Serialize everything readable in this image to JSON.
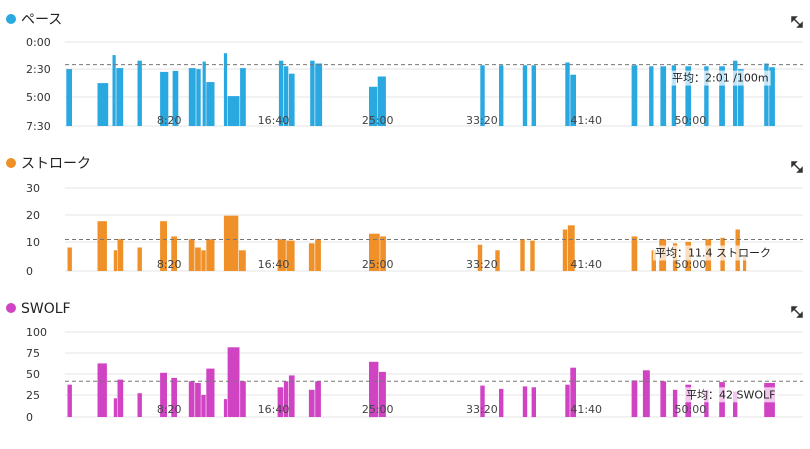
{
  "chart_data": [
    {
      "type": "bar",
      "title": "ペース",
      "color": "#2aa8e0",
      "y_ticks": [
        "0:00",
        "2:30",
        "5:00",
        "7:30"
      ],
      "ylim_seconds": [
        0,
        450
      ],
      "inverted": true,
      "x_ticks": [
        "8:20",
        "16:40",
        "25:00",
        "33:20",
        "41:40",
        "50:00"
      ],
      "x_tick_minutes": [
        8.333,
        16.667,
        25,
        33.333,
        41.667,
        50
      ],
      "xlim_minutes": [
        0,
        59
      ],
      "average_seconds": 121,
      "average_label": "平均：2:01 /100m",
      "bars": [
        {
          "start": 0.1,
          "end": 0.6,
          "value": 145
        },
        {
          "start": 2.6,
          "end": 3.5,
          "value": 220
        },
        {
          "start": 3.8,
          "end": 4.1,
          "value": 70
        },
        {
          "start": 4.1,
          "end": 4.7,
          "value": 140
        },
        {
          "start": 5.8,
          "end": 6.2,
          "value": 100
        },
        {
          "start": 7.6,
          "end": 8.3,
          "value": 160
        },
        {
          "start": 8.6,
          "end": 9.1,
          "value": 155
        },
        {
          "start": 9.9,
          "end": 10.5,
          "value": 140
        },
        {
          "start": 10.5,
          "end": 10.9,
          "value": 145
        },
        {
          "start": 11.0,
          "end": 11.3,
          "value": 105
        },
        {
          "start": 11.3,
          "end": 12.0,
          "value": 215
        },
        {
          "start": 12.7,
          "end": 13.0,
          "value": 60
        },
        {
          "start": 13.0,
          "end": 14.0,
          "value": 290
        },
        {
          "start": 14.0,
          "end": 14.5,
          "value": 140
        },
        {
          "start": 17.1,
          "end": 17.5,
          "value": 100
        },
        {
          "start": 17.5,
          "end": 17.9,
          "value": 130
        },
        {
          "start": 17.9,
          "end": 18.4,
          "value": 170
        },
        {
          "start": 19.6,
          "end": 20.0,
          "value": 100
        },
        {
          "start": 20.0,
          "end": 20.6,
          "value": 115
        },
        {
          "start": 24.3,
          "end": 25.0,
          "value": 240
        },
        {
          "start": 25.0,
          "end": 25.7,
          "value": 185
        },
        {
          "start": 33.2,
          "end": 33.6,
          "value": 125
        },
        {
          "start": 34.7,
          "end": 35.1,
          "value": 125
        },
        {
          "start": 36.6,
          "end": 37.0,
          "value": 125
        },
        {
          "start": 37.3,
          "end": 37.7,
          "value": 125
        },
        {
          "start": 40.0,
          "end": 40.4,
          "value": 110
        },
        {
          "start": 40.4,
          "end": 40.9,
          "value": 175
        },
        {
          "start": 45.3,
          "end": 45.8,
          "value": 125
        },
        {
          "start": 46.7,
          "end": 47.1,
          "value": 130
        },
        {
          "start": 47.6,
          "end": 48.1,
          "value": 130
        },
        {
          "start": 48.5,
          "end": 48.9,
          "value": 125
        },
        {
          "start": 49.6,
          "end": 50.1,
          "value": 130
        },
        {
          "start": 51.1,
          "end": 51.5,
          "value": 130
        },
        {
          "start": 52.3,
          "end": 52.8,
          "value": 130
        },
        {
          "start": 53.4,
          "end": 53.8,
          "value": 100
        },
        {
          "start": 53.8,
          "end": 54.3,
          "value": 145
        },
        {
          "start": 55.9,
          "end": 56.3,
          "value": 115
        },
        {
          "start": 56.3,
          "end": 56.8,
          "value": 135
        }
      ]
    },
    {
      "type": "bar",
      "title": "ストローク",
      "color": "#ef9128",
      "y_ticks": [
        "30",
        "20",
        "10",
        "0"
      ],
      "y_tick_values": [
        30,
        20,
        10,
        0
      ],
      "ylim": [
        0,
        30
      ],
      "x_ticks": [
        "8:20",
        "16:40",
        "25:00",
        "33:20",
        "41:40",
        "50:00"
      ],
      "x_tick_minutes": [
        8.333,
        16.667,
        25,
        33.333,
        41.667,
        50
      ],
      "xlim_minutes": [
        0,
        59
      ],
      "average": 11.4,
      "average_label": "平均：11.4 ストローク",
      "bars": [
        {
          "start": 0.2,
          "end": 0.6,
          "value": 8.5
        },
        {
          "start": 2.6,
          "end": 3.4,
          "value": 18
        },
        {
          "start": 3.9,
          "end": 4.2,
          "value": 7.5
        },
        {
          "start": 4.2,
          "end": 4.7,
          "value": 11.5
        },
        {
          "start": 5.8,
          "end": 6.2,
          "value": 8.5
        },
        {
          "start": 7.6,
          "end": 8.2,
          "value": 18
        },
        {
          "start": 8.5,
          "end": 9.0,
          "value": 12.5
        },
        {
          "start": 9.9,
          "end": 10.4,
          "value": 11.5
        },
        {
          "start": 10.4,
          "end": 10.9,
          "value": 8.5
        },
        {
          "start": 10.9,
          "end": 11.3,
          "value": 7.5
        },
        {
          "start": 11.3,
          "end": 12.0,
          "value": 11.5
        },
        {
          "start": 12.7,
          "end": 13.9,
          "value": 20
        },
        {
          "start": 13.9,
          "end": 14.5,
          "value": 7.5
        },
        {
          "start": 17.0,
          "end": 17.7,
          "value": 11.5
        },
        {
          "start": 17.7,
          "end": 18.4,
          "value": 11
        },
        {
          "start": 19.5,
          "end": 20.0,
          "value": 10
        },
        {
          "start": 20.0,
          "end": 20.5,
          "value": 11.5
        },
        {
          "start": 24.3,
          "end": 25.2,
          "value": 13.5
        },
        {
          "start": 25.2,
          "end": 25.7,
          "value": 12.5
        },
        {
          "start": 33.0,
          "end": 33.4,
          "value": 9.5
        },
        {
          "start": 34.4,
          "end": 34.8,
          "value": 7.5
        },
        {
          "start": 36.4,
          "end": 36.8,
          "value": 11.5
        },
        {
          "start": 37.2,
          "end": 37.6,
          "value": 11
        },
        {
          "start": 39.8,
          "end": 40.2,
          "value": 15
        },
        {
          "start": 40.2,
          "end": 40.8,
          "value": 16.5
        },
        {
          "start": 45.3,
          "end": 45.8,
          "value": 12.5
        },
        {
          "start": 46.9,
          "end": 47.3,
          "value": 7.5
        },
        {
          "start": 47.5,
          "end": 48.1,
          "value": 11.5
        },
        {
          "start": 48.6,
          "end": 49.0,
          "value": 10
        },
        {
          "start": 49.6,
          "end": 50.1,
          "value": 10.5
        },
        {
          "start": 51.2,
          "end": 51.7,
          "value": 11.5
        },
        {
          "start": 52.4,
          "end": 52.8,
          "value": 12
        },
        {
          "start": 53.6,
          "end": 54.0,
          "value": 15
        },
        {
          "start": 54.2,
          "end": 54.5,
          "value": 5
        }
      ]
    },
    {
      "type": "bar",
      "title": "SWOLF",
      "color": "#d044c3",
      "y_ticks": [
        "100",
        "75",
        "50",
        "25",
        "0"
      ],
      "y_tick_values": [
        100,
        75,
        50,
        25,
        0
      ],
      "ylim": [
        0,
        100
      ],
      "x_ticks": [
        "8:20",
        "16:40",
        "25:00",
        "33:20",
        "41:40",
        "50:00"
      ],
      "x_tick_minutes": [
        8.333,
        16.667,
        25,
        33.333,
        41.667,
        50
      ],
      "xlim_minutes": [
        0,
        59
      ],
      "average": 42,
      "average_label": "平均：42 SWOLF",
      "bars": [
        {
          "start": 0.2,
          "end": 0.6,
          "value": 38
        },
        {
          "start": 2.6,
          "end": 3.4,
          "value": 63
        },
        {
          "start": 3.9,
          "end": 4.2,
          "value": 22
        },
        {
          "start": 4.2,
          "end": 4.7,
          "value": 44
        },
        {
          "start": 5.8,
          "end": 6.2,
          "value": 28
        },
        {
          "start": 7.6,
          "end": 8.2,
          "value": 52
        },
        {
          "start": 8.5,
          "end": 9.0,
          "value": 46
        },
        {
          "start": 9.9,
          "end": 10.4,
          "value": 42
        },
        {
          "start": 10.4,
          "end": 10.9,
          "value": 40
        },
        {
          "start": 10.9,
          "end": 11.3,
          "value": 26
        },
        {
          "start": 11.3,
          "end": 12.0,
          "value": 57
        },
        {
          "start": 12.7,
          "end": 13.0,
          "value": 21
        },
        {
          "start": 13.0,
          "end": 14.0,
          "value": 82
        },
        {
          "start": 14.0,
          "end": 14.5,
          "value": 42
        },
        {
          "start": 17.0,
          "end": 17.5,
          "value": 35
        },
        {
          "start": 17.5,
          "end": 17.9,
          "value": 42
        },
        {
          "start": 17.9,
          "end": 18.4,
          "value": 49
        },
        {
          "start": 19.5,
          "end": 20.0,
          "value": 32
        },
        {
          "start": 20.0,
          "end": 20.5,
          "value": 42
        },
        {
          "start": 24.3,
          "end": 25.1,
          "value": 65
        },
        {
          "start": 25.1,
          "end": 25.7,
          "value": 53
        },
        {
          "start": 33.2,
          "end": 33.6,
          "value": 37
        },
        {
          "start": 34.7,
          "end": 35.1,
          "value": 33
        },
        {
          "start": 36.6,
          "end": 37.0,
          "value": 36
        },
        {
          "start": 37.3,
          "end": 37.7,
          "value": 35
        },
        {
          "start": 40.0,
          "end": 40.4,
          "value": 38
        },
        {
          "start": 40.4,
          "end": 40.9,
          "value": 58
        },
        {
          "start": 45.3,
          "end": 45.8,
          "value": 43
        },
        {
          "start": 46.2,
          "end": 46.8,
          "value": 55
        },
        {
          "start": 47.6,
          "end": 48.1,
          "value": 42
        },
        {
          "start": 48.6,
          "end": 49.0,
          "value": 32
        },
        {
          "start": 49.6,
          "end": 50.1,
          "value": 38
        },
        {
          "start": 51.1,
          "end": 51.5,
          "value": 32
        },
        {
          "start": 52.3,
          "end": 52.8,
          "value": 41
        },
        {
          "start": 53.4,
          "end": 53.8,
          "value": 30
        },
        {
          "start": 55.9,
          "end": 56.8,
          "value": 40
        }
      ]
    }
  ]
}
